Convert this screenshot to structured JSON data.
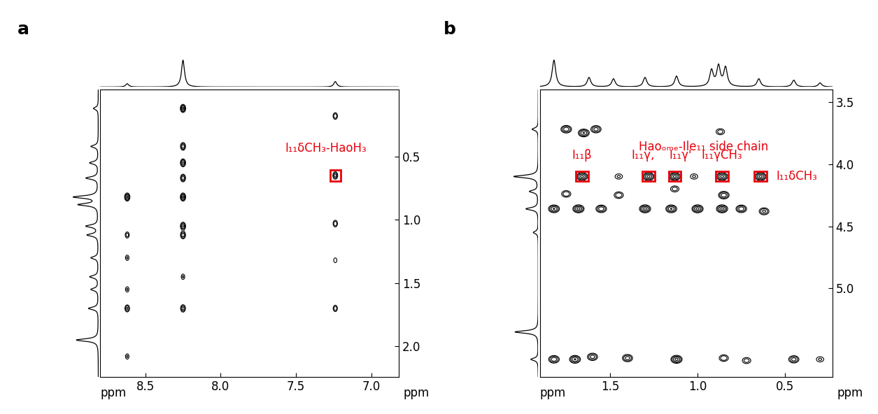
{
  "chart_data": [
    {
      "type": "contour",
      "title": "a",
      "x_label": "ppm",
      "y_label": "ppm",
      "xlim": [
        8.8,
        6.82
      ],
      "xticks": [
        8.5,
        8.0,
        7.5,
        7.0
      ],
      "ylim": [
        2.24,
        -0.03
      ],
      "yticks": [
        0.5,
        1.0,
        1.5,
        2.0
      ],
      "color": "#000000",
      "peaks": [
        [
          8.25,
          0.12,
          1.0
        ],
        [
          8.25,
          0.42,
          0.8
        ],
        [
          8.25,
          0.55,
          0.9
        ],
        [
          8.25,
          0.67,
          0.8
        ],
        [
          8.25,
          0.82,
          1.0
        ],
        [
          8.25,
          1.05,
          0.9
        ],
        [
          8.25,
          1.12,
          0.8
        ],
        [
          8.25,
          1.45,
          0.3
        ],
        [
          8.25,
          1.7,
          0.7
        ],
        [
          8.62,
          0.82,
          1.0
        ],
        [
          8.62,
          1.12,
          0.4
        ],
        [
          8.62,
          1.3,
          0.3
        ],
        [
          8.62,
          1.55,
          0.3
        ],
        [
          8.62,
          1.7,
          0.6
        ],
        [
          8.62,
          2.08,
          0.3
        ],
        [
          7.24,
          0.18,
          0.5
        ],
        [
          7.24,
          0.65,
          0.7
        ],
        [
          7.24,
          1.03,
          0.5
        ],
        [
          7.24,
          1.32,
          0.25
        ],
        [
          7.24,
          1.7,
          0.45
        ]
      ],
      "top_projection": [
        [
          8.25,
          1.0
        ],
        [
          8.62,
          0.12
        ],
        [
          7.24,
          0.2
        ]
      ],
      "side_projection": [
        [
          0.12,
          0.2
        ],
        [
          0.42,
          0.3
        ],
        [
          0.55,
          0.35
        ],
        [
          0.67,
          0.5
        ],
        [
          0.82,
          1.0
        ],
        [
          0.88,
          0.8
        ],
        [
          1.05,
          0.5
        ],
        [
          1.12,
          0.45
        ],
        [
          1.3,
          0.3
        ],
        [
          1.45,
          0.35
        ],
        [
          1.55,
          0.3
        ],
        [
          1.7,
          0.4
        ],
        [
          1.95,
          0.9
        ]
      ],
      "annotations": [
        {
          "text": "I₁₁δCH₃-HaoH₃",
          "x": 7.24,
          "y": 0.65,
          "color": "#e8000b"
        }
      ]
    },
    {
      "type": "contour",
      "title": "b",
      "x_label": "ppm",
      "y_label": "ppm",
      "xlim": [
        1.9,
        0.23
      ],
      "xticks": [
        1.5,
        1.0,
        0.5
      ],
      "ylim": [
        5.71,
        3.4
      ],
      "yticks": [
        3.5,
        4.0,
        4.5,
        5.0
      ],
      "color": "#000000",
      "group_label": "Haoₒₘₑ-Ile₁₁ side chain",
      "peaks": [
        [
          1.75,
          3.72,
          0.8
        ],
        [
          1.65,
          3.75,
          0.9
        ],
        [
          1.58,
          3.72,
          0.7
        ],
        [
          0.87,
          3.74,
          0.4
        ],
        [
          1.66,
          4.1,
          1.0
        ],
        [
          1.45,
          4.1,
          0.3
        ],
        [
          1.28,
          4.1,
          1.0
        ],
        [
          1.13,
          4.1,
          1.0
        ],
        [
          1.02,
          4.1,
          0.3
        ],
        [
          0.86,
          4.1,
          1.0
        ],
        [
          0.64,
          4.1,
          1.0
        ],
        [
          1.75,
          4.24,
          0.5
        ],
        [
          1.45,
          4.25,
          0.5
        ],
        [
          1.13,
          4.2,
          0.4
        ],
        [
          0.85,
          4.25,
          0.8
        ],
        [
          1.82,
          4.36,
          0.9
        ],
        [
          1.68,
          4.36,
          1.0
        ],
        [
          1.55,
          4.36,
          0.8
        ],
        [
          1.3,
          4.36,
          1.0
        ],
        [
          1.15,
          4.36,
          0.9
        ],
        [
          1.0,
          4.36,
          1.0
        ],
        [
          0.86,
          4.36,
          1.0
        ],
        [
          0.75,
          4.36,
          0.8
        ],
        [
          0.62,
          4.38,
          0.6
        ],
        [
          1.82,
          5.57,
          0.8
        ],
        [
          1.7,
          5.57,
          0.9
        ],
        [
          1.6,
          5.55,
          0.7
        ],
        [
          1.4,
          5.56,
          0.7
        ],
        [
          1.12,
          5.57,
          1.0
        ],
        [
          0.85,
          5.56,
          0.5
        ],
        [
          0.72,
          5.58,
          0.4
        ],
        [
          0.45,
          5.57,
          0.7
        ],
        [
          0.3,
          5.57,
          0.3
        ]
      ],
      "top_projection": [
        [
          1.82,
          1.0
        ],
        [
          1.62,
          0.35
        ],
        [
          1.48,
          0.3
        ],
        [
          1.3,
          0.35
        ],
        [
          1.12,
          0.4
        ],
        [
          0.92,
          0.6
        ],
        [
          0.88,
          0.75
        ],
        [
          0.84,
          0.7
        ],
        [
          0.65,
          0.3
        ],
        [
          0.45,
          0.25
        ],
        [
          0.3,
          0.15
        ]
      ],
      "side_projection": [
        [
          3.72,
          0.25
        ],
        [
          4.1,
          1.0
        ],
        [
          4.22,
          0.35
        ],
        [
          4.36,
          0.5
        ],
        [
          4.55,
          0.2
        ],
        [
          5.35,
          0.95
        ],
        [
          5.57,
          0.3
        ]
      ],
      "annotations": [
        {
          "text": "I₁₁β",
          "x": 1.66,
          "y": 4.1,
          "color": "#e8000b"
        },
        {
          "text": "I₁₁γ,",
          "x": 1.28,
          "y": 4.1,
          "color": "#e8000b"
        },
        {
          "text": "I₁₁γ'",
          "x": 1.13,
          "y": 4.1,
          "color": "#e8000b"
        },
        {
          "text": "I₁₁γCH₃",
          "x": 0.86,
          "y": 4.1,
          "color": "#e8000b"
        },
        {
          "text": "I₁₁δCH₃",
          "x": 0.64,
          "y": 4.1,
          "color": "#e8000b"
        }
      ]
    }
  ]
}
